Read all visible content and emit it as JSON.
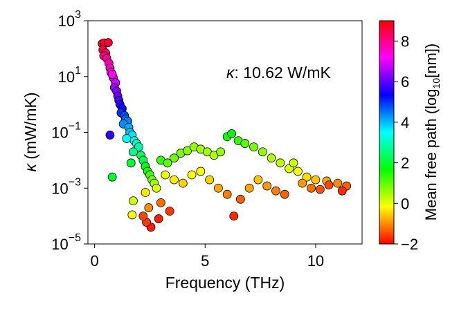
{
  "chart_data": {
    "type": "scatter",
    "xlabel": "Frequency (THz)",
    "ylabel_symbol": "κ",
    "ylabel_unit": " (mW/mK)",
    "xlim": [
      -0.3,
      12.1
    ],
    "ylim": [
      1e-05,
      1000
    ],
    "yscale": "log",
    "xticks": [
      0,
      5,
      10
    ],
    "xtick_labels": [
      "0",
      "5",
      "10"
    ],
    "yticks": [
      1e-05,
      0.001,
      0.1,
      10,
      1000
    ],
    "ytick_labels": [
      {
        "base": "10",
        "exp": "−5"
      },
      {
        "base": "10",
        "exp": "−3"
      },
      {
        "base": "10",
        "exp": "−1"
      },
      {
        "base": "10",
        "exp": "1"
      },
      {
        "base": "10",
        "exp": "3"
      }
    ],
    "grid": false,
    "annotation": {
      "symbol": "κ",
      "text": ": 10.62 W/mK"
    },
    "marker": {
      "edgecolor": "#000000"
    },
    "colorbar": {
      "label": "Mean free path (log",
      "label_sub": "10",
      "label_end": "[nm])",
      "range": [
        -2,
        9
      ],
      "ticks": [
        -2,
        0,
        2,
        4,
        6,
        8
      ],
      "tick_labels": [
        "−2",
        "0",
        "2",
        "4",
        "6",
        "8"
      ],
      "cmap": "hsv",
      "colors": [
        "#ff0000",
        "#ffff00",
        "#00ff00",
        "#00ffff",
        "#0000ff",
        "#ff00ff",
        "#ff0000"
      ]
    },
    "series": [
      {
        "values": [
          {
            "x": 0.35,
            "y": 150,
            "c": 8.7
          },
          {
            "x": 0.45,
            "y": 160,
            "c": 8.7
          },
          {
            "x": 0.62,
            "y": 165,
            "c": 8.6
          },
          {
            "x": 0.38,
            "y": 90,
            "c": 8.5
          },
          {
            "x": 0.5,
            "y": 70,
            "c": 8.3
          },
          {
            "x": 0.42,
            "y": 55,
            "c": 8.1
          },
          {
            "x": 0.55,
            "y": 45,
            "c": 8.0
          },
          {
            "x": 0.65,
            "y": 30,
            "c": 7.7
          },
          {
            "x": 0.7,
            "y": 20,
            "c": 7.5
          },
          {
            "x": 0.75,
            "y": 14,
            "c": 7.3
          },
          {
            "x": 0.85,
            "y": 9,
            "c": 7.0
          },
          {
            "x": 0.8,
            "y": 12,
            "c": 7.2
          },
          {
            "x": 0.95,
            "y": 6,
            "c": 6.8
          },
          {
            "x": 0.9,
            "y": 4,
            "c": 6.5
          },
          {
            "x": 1.0,
            "y": 3,
            "c": 6.3
          },
          {
            "x": 1.05,
            "y": 2,
            "c": 6.1
          },
          {
            "x": 1.1,
            "y": 1.4,
            "c": 5.9
          },
          {
            "x": 1.15,
            "y": 1.0,
            "c": 5.6
          },
          {
            "x": 1.25,
            "y": 0.7,
            "c": 5.2
          },
          {
            "x": 1.2,
            "y": 0.5,
            "c": 5.0
          },
          {
            "x": 1.35,
            "y": 0.4,
            "c": 4.8
          },
          {
            "x": 1.4,
            "y": 0.3,
            "c": 4.6
          },
          {
            "x": 1.5,
            "y": 0.25,
            "c": 4.4
          },
          {
            "x": 1.3,
            "y": 0.2,
            "c": 4.3
          },
          {
            "x": 1.55,
            "y": 0.15,
            "c": 4.1
          },
          {
            "x": 1.6,
            "y": 0.1,
            "c": 3.9
          },
          {
            "x": 1.7,
            "y": 0.08,
            "c": 3.7
          },
          {
            "x": 1.45,
            "y": 0.06,
            "c": 3.5
          },
          {
            "x": 1.8,
            "y": 0.05,
            "c": 3.3
          },
          {
            "x": 1.9,
            "y": 0.04,
            "c": 3.1
          },
          {
            "x": 2.0,
            "y": 0.03,
            "c": 2.9
          },
          {
            "x": 1.75,
            "y": 0.02,
            "c": 2.7
          },
          {
            "x": 2.1,
            "y": 0.015,
            "c": 2.4
          },
          {
            "x": 2.2,
            "y": 0.01,
            "c": 2.2
          },
          {
            "x": 1.65,
            "y": 0.008,
            "c": 2.0
          },
          {
            "x": 2.3,
            "y": 0.006,
            "c": 1.8
          },
          {
            "x": 2.4,
            "y": 0.004,
            "c": 1.5
          },
          {
            "x": 2.5,
            "y": 0.003,
            "c": 1.2
          },
          {
            "x": 2.6,
            "y": 0.002,
            "c": 0.9
          },
          {
            "x": 2.7,
            "y": 0.0015,
            "c": 0.5
          },
          {
            "x": 2.8,
            "y": 0.001,
            "c": 0.1
          },
          {
            "x": 2.3,
            "y": 0.0007,
            "c": -0.3
          },
          {
            "x": 2.45,
            "y": 0.0002,
            "c": -1.0
          },
          {
            "x": 2.55,
            "y": 4e-05,
            "c": -1.8
          },
          {
            "x": 2.35,
            "y": 6e-05,
            "c": -1.6
          },
          {
            "x": 0.7,
            "y": 0.08,
            "c": 5.7
          },
          {
            "x": 0.8,
            "y": 0.0025,
            "c": 2.0
          },
          {
            "x": 1.75,
            "y": 0.00035,
            "c": 0.2
          },
          {
            "x": 1.7,
            "y": 0.00011,
            "c": -0.2
          },
          {
            "x": 3.0,
            "y": 0.01,
            "c": 1.3
          },
          {
            "x": 3.3,
            "y": 0.008,
            "c": 1.0
          },
          {
            "x": 3.6,
            "y": 0.012,
            "c": 0.9
          },
          {
            "x": 3.9,
            "y": 0.018,
            "c": 0.8
          },
          {
            "x": 4.2,
            "y": 0.022,
            "c": 0.7
          },
          {
            "x": 4.5,
            "y": 0.03,
            "c": 0.6
          },
          {
            "x": 4.8,
            "y": 0.025,
            "c": 0.5
          },
          {
            "x": 5.1,
            "y": 0.02,
            "c": 0.5
          },
          {
            "x": 5.4,
            "y": 0.015,
            "c": 0.4
          },
          {
            "x": 5.7,
            "y": 0.02,
            "c": 0.6
          },
          {
            "x": 6.0,
            "y": 0.07,
            "c": 1.5
          },
          {
            "x": 6.2,
            "y": 0.09,
            "c": 1.8
          },
          {
            "x": 6.5,
            "y": 0.05,
            "c": 1.3
          },
          {
            "x": 6.8,
            "y": 0.04,
            "c": 1.0
          },
          {
            "x": 7.2,
            "y": 0.03,
            "c": 0.8
          },
          {
            "x": 7.6,
            "y": 0.02,
            "c": 0.6
          },
          {
            "x": 8.0,
            "y": 0.012,
            "c": 0.4
          },
          {
            "x": 8.4,
            "y": 0.008,
            "c": 0.3
          },
          {
            "x": 8.8,
            "y": 0.005,
            "c": 0.1
          },
          {
            "x": 9.2,
            "y": 0.004,
            "c": -0.1
          },
          {
            "x": 9.6,
            "y": 0.0025,
            "c": -0.4
          },
          {
            "x": 10.0,
            "y": 0.002,
            "c": -0.6
          },
          {
            "x": 10.5,
            "y": 0.0018,
            "c": -0.8
          },
          {
            "x": 11.0,
            "y": 0.0015,
            "c": -1.0
          },
          {
            "x": 11.4,
            "y": 0.0012,
            "c": -1.3
          },
          {
            "x": 3.2,
            "y": 0.003,
            "c": 0.0
          },
          {
            "x": 3.6,
            "y": 0.002,
            "c": -0.3
          },
          {
            "x": 4.0,
            "y": 0.0015,
            "c": -0.5
          },
          {
            "x": 4.4,
            "y": 0.003,
            "c": -0.2
          },
          {
            "x": 4.8,
            "y": 0.004,
            "c": -0.1
          },
          {
            "x": 5.2,
            "y": 0.002,
            "c": -0.5
          },
          {
            "x": 5.6,
            "y": 0.001,
            "c": -0.8
          },
          {
            "x": 6.0,
            "y": 0.0006,
            "c": -1.1
          },
          {
            "x": 6.3,
            "y": 0.0001,
            "c": -1.7
          },
          {
            "x": 6.6,
            "y": 0.0004,
            "c": -1.3
          },
          {
            "x": 7.0,
            "y": 0.001,
            "c": -0.8
          },
          {
            "x": 7.4,
            "y": 0.002,
            "c": -0.6
          },
          {
            "x": 7.8,
            "y": 0.0012,
            "c": -0.9
          },
          {
            "x": 8.2,
            "y": 0.0008,
            "c": -1.1
          },
          {
            "x": 8.6,
            "y": 0.0006,
            "c": -1.3
          },
          {
            "x": 9.0,
            "y": 0.008,
            "c": 0.2
          },
          {
            "x": 9.4,
            "y": 0.0015,
            "c": -0.9
          },
          {
            "x": 9.8,
            "y": 0.001,
            "c": -1.2
          },
          {
            "x": 10.2,
            "y": 0.0009,
            "c": -1.4
          },
          {
            "x": 10.6,
            "y": 0.0013,
            "c": -1.5
          },
          {
            "x": 11.2,
            "y": 0.0008,
            "c": -1.7
          },
          {
            "x": 3.0,
            "y": 0.0003,
            "c": -1.2
          },
          {
            "x": 3.4,
            "y": 0.00015,
            "c": -1.6
          },
          {
            "x": 2.9,
            "y": 8e-05,
            "c": -1.8
          },
          {
            "x": 2.2,
            "y": 0.0001,
            "c": -1.5
          }
        ]
      }
    ]
  }
}
